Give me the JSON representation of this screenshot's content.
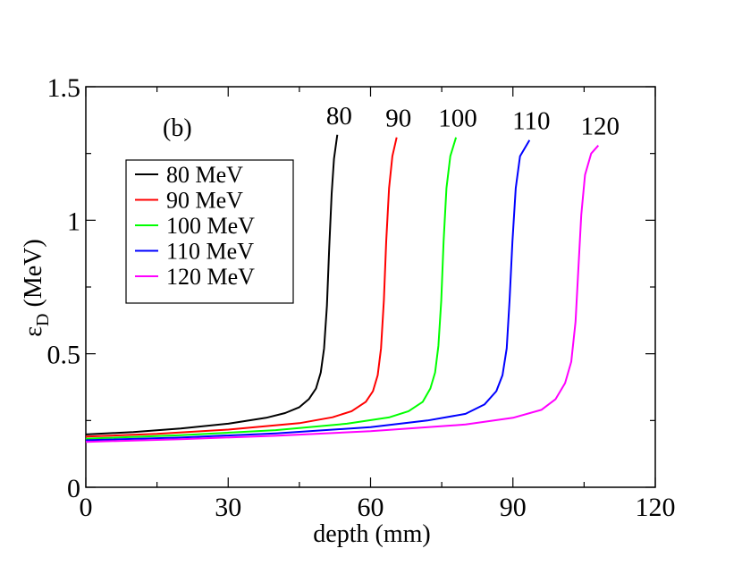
{
  "chart_data": {
    "type": "line",
    "panel_label": "(b)",
    "xlabel": "depth (mm)",
    "ylabel_symbol": "ε",
    "ylabel_subscript": "D",
    "ylabel_unit": " (MeV)",
    "xlim": [
      0,
      120
    ],
    "ylim": [
      0,
      1.5
    ],
    "xticks": [
      0,
      30,
      60,
      90,
      120
    ],
    "xtick_labels": [
      "0",
      "30",
      "60",
      "90",
      "120"
    ],
    "yticks": [
      0,
      0.5,
      1,
      1.5
    ],
    "ytick_labels": [
      "0",
      "0.5",
      "1",
      "1.5"
    ],
    "legend_position": "upper-left",
    "series": [
      {
        "name": "80 MeV",
        "end_label": "80",
        "color": "#000000",
        "points": [
          [
            0,
            0.198
          ],
          [
            10,
            0.207
          ],
          [
            20,
            0.22
          ],
          [
            30,
            0.238
          ],
          [
            38,
            0.26
          ],
          [
            42,
            0.278
          ],
          [
            45,
            0.3
          ],
          [
            47,
            0.33
          ],
          [
            48.5,
            0.37
          ],
          [
            49.5,
            0.43
          ],
          [
            50.2,
            0.52
          ],
          [
            50.8,
            0.68
          ],
          [
            51.3,
            0.9
          ],
          [
            51.8,
            1.1
          ],
          [
            52.3,
            1.23
          ],
          [
            53.0,
            1.32
          ]
        ]
      },
      {
        "name": "90 MeV",
        "end_label": "90",
        "color": "#ff0000",
        "points": [
          [
            0,
            0.19
          ],
          [
            15,
            0.2
          ],
          [
            30,
            0.216
          ],
          [
            45,
            0.24
          ],
          [
            52,
            0.262
          ],
          [
            56,
            0.285
          ],
          [
            59,
            0.32
          ],
          [
            60.5,
            0.36
          ],
          [
            61.5,
            0.42
          ],
          [
            62.2,
            0.52
          ],
          [
            62.8,
            0.7
          ],
          [
            63.3,
            0.92
          ],
          [
            63.9,
            1.12
          ],
          [
            64.6,
            1.24
          ],
          [
            65.5,
            1.31
          ]
        ]
      },
      {
        "name": "100 MeV",
        "end_label": "100",
        "color": "#00ff00",
        "points": [
          [
            0,
            0.182
          ],
          [
            20,
            0.195
          ],
          [
            40,
            0.214
          ],
          [
            55,
            0.238
          ],
          [
            64,
            0.262
          ],
          [
            68,
            0.285
          ],
          [
            71,
            0.32
          ],
          [
            72.6,
            0.37
          ],
          [
            73.6,
            0.43
          ],
          [
            74.3,
            0.53
          ],
          [
            74.9,
            0.7
          ],
          [
            75.4,
            0.92
          ],
          [
            76.0,
            1.12
          ],
          [
            76.8,
            1.24
          ],
          [
            78.0,
            1.31
          ]
        ]
      },
      {
        "name": "110 MeV",
        "end_label": "110",
        "color": "#0000ff",
        "points": [
          [
            0,
            0.176
          ],
          [
            20,
            0.186
          ],
          [
            40,
            0.202
          ],
          [
            60,
            0.225
          ],
          [
            72,
            0.25
          ],
          [
            80,
            0.275
          ],
          [
            84,
            0.31
          ],
          [
            86.5,
            0.36
          ],
          [
            87.8,
            0.42
          ],
          [
            88.7,
            0.52
          ],
          [
            89.3,
            0.7
          ],
          [
            89.9,
            0.92
          ],
          [
            90.6,
            1.12
          ],
          [
            91.5,
            1.24
          ],
          [
            93.5,
            1.3
          ]
        ]
      },
      {
        "name": "120 MeV",
        "end_label": "120",
        "color": "#ff00ff",
        "points": [
          [
            0,
            0.17
          ],
          [
            20,
            0.18
          ],
          [
            40,
            0.193
          ],
          [
            60,
            0.21
          ],
          [
            80,
            0.235
          ],
          [
            90,
            0.26
          ],
          [
            96,
            0.29
          ],
          [
            99,
            0.33
          ],
          [
            101,
            0.39
          ],
          [
            102.3,
            0.47
          ],
          [
            103.2,
            0.62
          ],
          [
            103.8,
            0.82
          ],
          [
            104.4,
            1.02
          ],
          [
            105.2,
            1.17
          ],
          [
            106.5,
            1.25
          ],
          [
            108,
            1.28
          ]
        ]
      }
    ]
  }
}
